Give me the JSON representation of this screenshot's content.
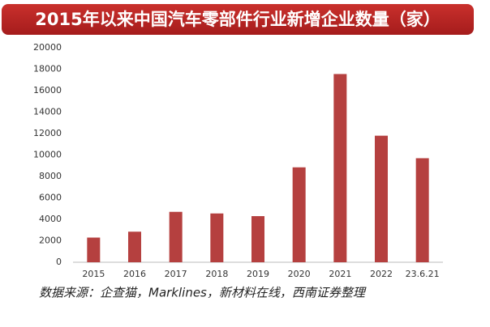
{
  "chart_data": {
    "type": "bar",
    "title": "2015年以来中国汽车零部件行业新增企业数量（家）",
    "source": "数据来源：企查猫，Marklines，新材料在线，西南证券整理",
    "categories": [
      "2015",
      "2016",
      "2017",
      "2018",
      "2019",
      "2020",
      "2021",
      "2022",
      "23.6.21"
    ],
    "values": [
      2300,
      2850,
      4700,
      4550,
      4300,
      8850,
      17550,
      11800,
      9700
    ],
    "color": "#b5403f",
    "ylim": [
      0,
      20000
    ],
    "yticks": [
      0,
      2000,
      4000,
      6000,
      8000,
      10000,
      12000,
      14000,
      16000,
      18000,
      20000
    ],
    "grid": false
  }
}
